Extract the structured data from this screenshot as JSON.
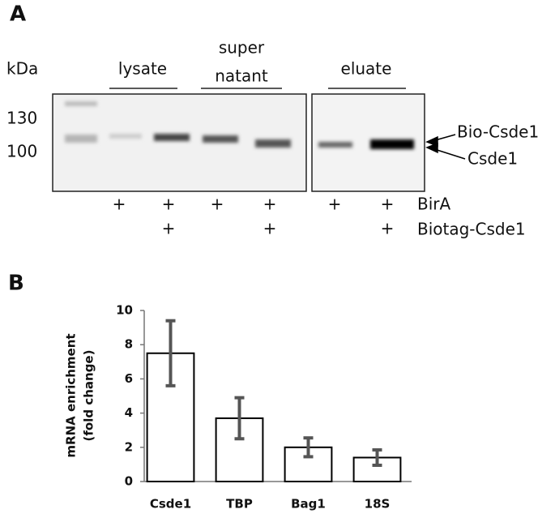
{
  "panel_a": {
    "label": "A",
    "unit": "kDa",
    "markers": [
      130,
      100
    ],
    "groups": [
      [
        "lysate"
      ],
      [
        "super",
        "natant"
      ],
      [
        "eluate"
      ]
    ],
    "bands": [
      "Bio-Csde1",
      "Csde1"
    ],
    "rows": [
      "BirA",
      "Biotag-Csde1"
    ],
    "lanes": [
      {
        "birA": "+"
      },
      {
        "birA": "+",
        "biotag": "+"
      },
      {
        "birA": "+"
      },
      {
        "birA": "+",
        "biotag": "+"
      },
      {
        "birA": "+"
      },
      {
        "birA": "+",
        "biotag": "+"
      }
    ]
  },
  "panel_b": {
    "label": "B"
  },
  "chart_data": {
    "type": "bar",
    "ylabel": [
      "mRNA enrichment",
      "(fold change)"
    ],
    "categories": [
      "Csde1",
      "TBP",
      "Bag1",
      "18S"
    ],
    "values": [
      7.5,
      3.7,
      2.0,
      1.4
    ],
    "errors": [
      1.9,
      1.2,
      0.55,
      0.45
    ],
    "color": "#ffffff",
    "error_color": "#555555",
    "ylim": [
      0,
      10
    ],
    "yticks": [
      0,
      2,
      4,
      6,
      8,
      10
    ]
  }
}
